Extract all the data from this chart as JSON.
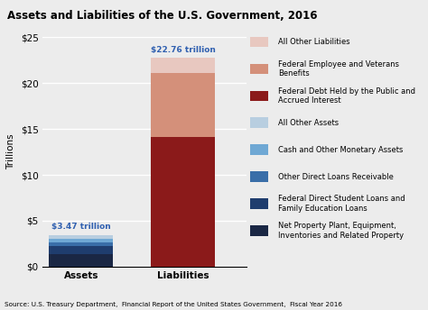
{
  "title": "Assets and Liabilities of the U.S. Government, 2016",
  "ylabel": "Trillions",
  "source": "Source: U.S. Treasury Department,  Financial Report of the United States Government,  Fiscal Year 2016",
  "categories": [
    "Assets",
    "Liabilities"
  ],
  "total_labels": [
    "$3.47 trillion",
    "$22.76 trillion"
  ],
  "ylim": [
    0,
    25
  ],
  "yticks": [
    0,
    5,
    10,
    15,
    20,
    25
  ],
  "ytick_labels": [
    "$0",
    "$5",
    "$10",
    "$15",
    "$20",
    "$25"
  ],
  "assets_segments": [
    {
      "label": "Net Property Plant, Equipment,\nInventories and Related Property",
      "value": 1.4,
      "color": "#1a2744"
    },
    {
      "label": "Federal Direct Student Loans and\nFamily Education Loans",
      "value": 0.85,
      "color": "#1f3d6e"
    },
    {
      "label": "Other Direct Loans Receivable",
      "value": 0.4,
      "color": "#3a6ea8"
    },
    {
      "label": "Cash and Other Monetary Assets",
      "value": 0.42,
      "color": "#6fa8d4"
    },
    {
      "label": "All Other Assets",
      "value": 0.4,
      "color": "#b8cee0"
    }
  ],
  "liabilities_segments": [
    {
      "label": "Federal Debt Held by the Public and\nAccrued Interest",
      "value": 14.17,
      "color": "#8b1a1a"
    },
    {
      "label": "Federal Employee and Veterans\nBenefits",
      "value": 6.93,
      "color": "#d4907a"
    },
    {
      "label": "All Other Liabilities",
      "value": 1.66,
      "color": "#e8c8c0"
    }
  ],
  "legend_items": [
    {
      "label": "All Other Liabilities",
      "color": "#e8c8c0"
    },
    {
      "label": "Federal Employee and Veterans\nBenefits",
      "color": "#d4907a"
    },
    {
      "label": "Federal Debt Held by the Public and\nAccrued Interest",
      "color": "#8b1a1a"
    },
    {
      "label": "All Other Assets",
      "color": "#b8cee0"
    },
    {
      "label": "Cash and Other Monetary Assets",
      "color": "#6fa8d4"
    },
    {
      "label": "Other Direct Loans Receivable",
      "color": "#3a6ea8"
    },
    {
      "label": "Federal Direct Student Loans and\nFamily Education Loans",
      "color": "#1f3d6e"
    },
    {
      "label": "Net Property Plant, Equipment,\nInventories and Related Property",
      "color": "#1a2744"
    }
  ],
  "bar_width": 0.5,
  "x_positions": [
    0.3,
    1.1
  ],
  "xlim": [
    0.0,
    1.6
  ],
  "background_color": "#ececec",
  "title_fontsize": 8.5,
  "axis_fontsize": 7.5,
  "tick_fontsize": 7.5,
  "legend_fontsize": 6.0,
  "source_fontsize": 5.2,
  "label_color": "#3060b0"
}
